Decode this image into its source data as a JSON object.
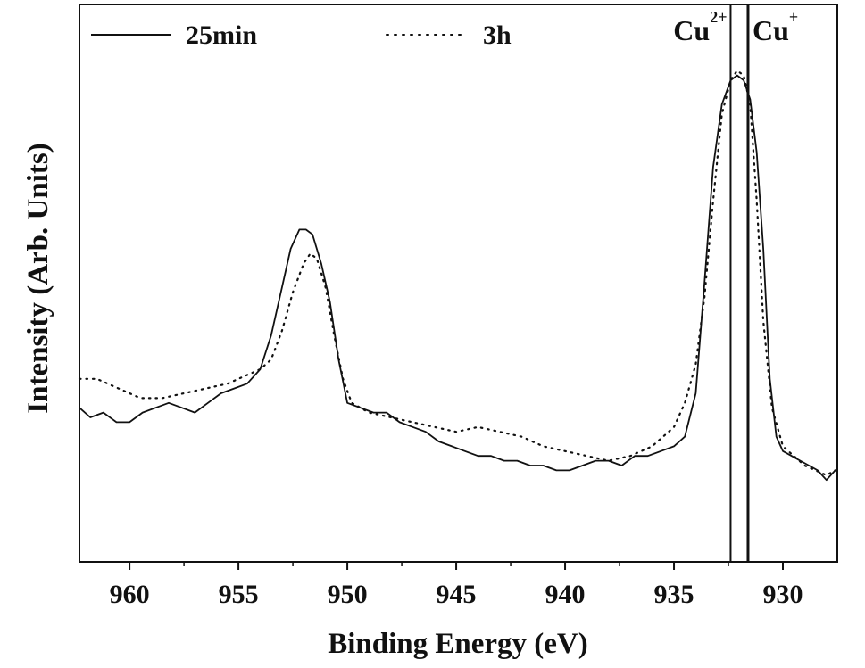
{
  "chart_data": {
    "type": "line",
    "xlabel": "Binding Energy (eV)",
    "ylabel": "Intensity (Arb. Units)",
    "xlim": [
      962.3,
      927.5
    ],
    "ylim": [
      0,
      100
    ],
    "x_reversed": true,
    "x_ticks": [
      960,
      955,
      950,
      945,
      940,
      935,
      930
    ],
    "x_tick_labels": [
      "960",
      "955",
      "950",
      "945",
      "940",
      "935",
      "930"
    ],
    "y_ticks_shown": false,
    "grid": false,
    "legend": {
      "placement": "top",
      "entries": [
        {
          "label": "25min",
          "style": "solid"
        },
        {
          "label": "3h",
          "style": "dotted"
        }
      ]
    },
    "series": [
      {
        "name": "25min",
        "style": "solid",
        "x": [
          962.3,
          961.8,
          961.2,
          960.6,
          960.0,
          959.4,
          958.8,
          958.2,
          957.6,
          957.0,
          956.4,
          955.8,
          955.2,
          954.6,
          954.0,
          953.5,
          953.0,
          952.6,
          952.2,
          951.9,
          951.6,
          951.2,
          950.8,
          950.4,
          950.0,
          949.4,
          948.8,
          948.2,
          947.6,
          947.0,
          946.4,
          945.8,
          945.2,
          944.6,
          944.0,
          943.4,
          942.8,
          942.2,
          941.6,
          941.0,
          940.4,
          939.8,
          939.2,
          938.6,
          938.0,
          937.4,
          936.8,
          936.2,
          935.6,
          935.0,
          934.5,
          934.0,
          933.6,
          933.2,
          932.8,
          932.4,
          932.1,
          931.8,
          931.5,
          931.2,
          930.9,
          930.6,
          930.3,
          930.0,
          929.6,
          929.2,
          928.8,
          928.4,
          928.0,
          927.6
        ],
        "y": [
          32,
          30,
          31,
          29,
          29,
          31,
          32,
          33,
          32,
          31,
          33,
          35,
          36,
          37,
          40,
          47,
          57,
          65,
          69,
          69,
          68,
          62,
          54,
          42,
          33,
          32,
          31,
          31,
          29,
          28,
          27,
          25,
          24,
          23,
          22,
          22,
          21,
          21,
          20,
          20,
          19,
          19,
          20,
          21,
          21,
          20,
          22,
          22,
          23,
          24,
          26,
          35,
          58,
          82,
          95,
          100,
          101,
          100,
          96,
          85,
          65,
          38,
          26,
          23,
          22,
          21,
          20,
          19,
          17,
          19
        ]
      },
      {
        "name": "3h",
        "style": "dotted",
        "x": [
          962.3,
          961.5,
          960.5,
          959.5,
          958.5,
          957.5,
          956.5,
          955.5,
          954.5,
          954.0,
          953.5,
          953.0,
          952.5,
          952.0,
          951.7,
          951.4,
          951.0,
          950.6,
          950.2,
          949.8,
          949.0,
          948.0,
          947.0,
          946.0,
          945.0,
          944.0,
          943.0,
          942.0,
          941.0,
          940.0,
          939.0,
          938.0,
          937.0,
          936.0,
          935.0,
          934.5,
          934.0,
          933.6,
          933.2,
          932.8,
          932.4,
          932.1,
          931.8,
          931.5,
          931.2,
          930.9,
          930.5,
          930.0,
          929.5,
          929.0,
          928.5,
          928.0,
          927.6
        ],
        "y": [
          38,
          38,
          36,
          34,
          34,
          35,
          36,
          37,
          39,
          40,
          42,
          48,
          56,
          62,
          64,
          63,
          57,
          47,
          38,
          33,
          31,
          30,
          29,
          28,
          27,
          28,
          27,
          26,
          24,
          23,
          22,
          21,
          22,
          24,
          28,
          33,
          41,
          55,
          75,
          93,
          100,
          102,
          101,
          95,
          75,
          50,
          32,
          24,
          22,
          20,
          19,
          18,
          19
        ]
      }
    ],
    "annotations": [
      {
        "x": 932.4,
        "base": "Cu",
        "sup": "2+"
      },
      {
        "x": 931.6,
        "base": "Cu",
        "sup": "+"
      }
    ]
  }
}
